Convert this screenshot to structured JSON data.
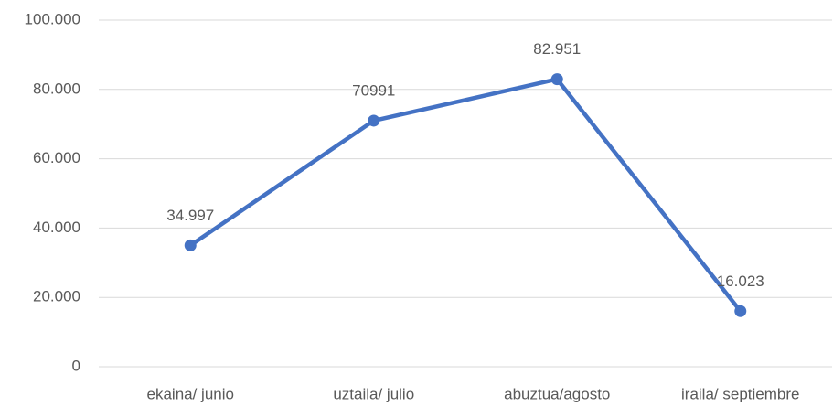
{
  "chart_data": {
    "type": "line",
    "categories": [
      "ekaina/ junio",
      "uztaila/ julio",
      "abuztua/agosto",
      "iraila/ septiembre"
    ],
    "series": [
      {
        "color": "#4472c4",
        "values": [
          34997,
          70991,
          82951,
          16023
        ],
        "value_labels": [
          "34.997",
          "70991",
          "82.951",
          "16.023"
        ]
      }
    ],
    "ylim": [
      0,
      100000
    ],
    "yticks": [
      0,
      {
        "value": 20000,
        "label": "20.000"
      },
      {
        "value": 40000,
        "label": "40.000"
      },
      {
        "value": 60000,
        "label": "60.000"
      },
      {
        "value": 80000,
        "label": "80.000"
      },
      {
        "value": 100000,
        "label": "100.000"
      }
    ],
    "grid": true
  }
}
